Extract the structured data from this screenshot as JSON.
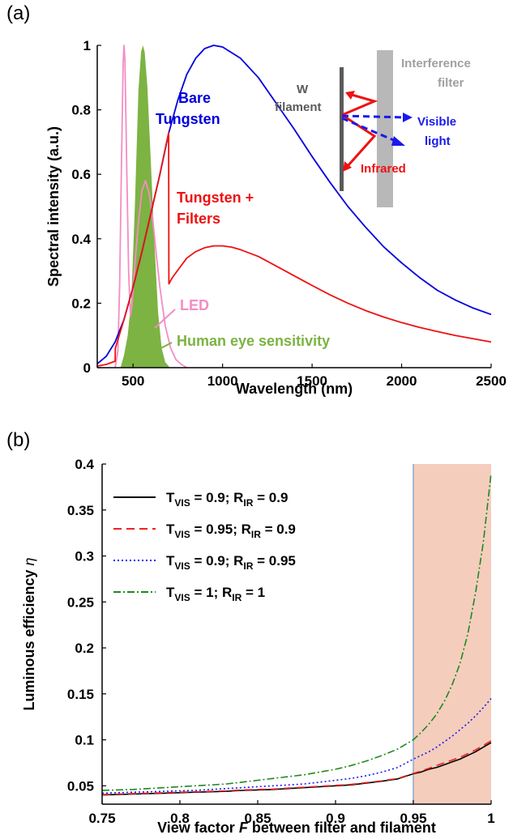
{
  "chart_data": [
    {
      "panel_label": "(a)",
      "type": "line",
      "xlabel": "Wavelength (nm)",
      "ylabel": "Spectral intensity (a.u.)",
      "xlim": [
        300,
        2500
      ],
      "ylim": [
        0,
        1
      ],
      "xticks": [
        500,
        1000,
        1500,
        2000,
        2500
      ],
      "yticks": [
        0,
        0.2,
        0.4,
        0.6,
        0.8,
        1
      ],
      "series": [
        {
          "name": "Bare Tungsten",
          "color": "#0000dd",
          "x": [
            300,
            350,
            400,
            450,
            500,
            550,
            600,
            650,
            700,
            750,
            800,
            850,
            900,
            950,
            1000,
            1100,
            1200,
            1300,
            1400,
            1500,
            1600,
            1700,
            1800,
            1900,
            2000,
            2100,
            2200,
            2300,
            2400,
            2500
          ],
          "y": [
            0.012,
            0.035,
            0.08,
            0.15,
            0.25,
            0.36,
            0.48,
            0.6,
            0.73,
            0.83,
            0.91,
            0.96,
            0.99,
            1.0,
            0.995,
            0.96,
            0.9,
            0.82,
            0.74,
            0.655,
            0.575,
            0.5,
            0.435,
            0.375,
            0.325,
            0.28,
            0.24,
            0.21,
            0.185,
            0.165
          ]
        },
        {
          "name": "Tungsten + Filters",
          "color": "#ee1111",
          "x": [
            300,
            350,
            400,
            401,
            450,
            500,
            550,
            600,
            650,
            699,
            700,
            720,
            760,
            800,
            850,
            900,
            950,
            1000,
            1050,
            1100,
            1200,
            1300,
            1400,
            1500,
            1600,
            1700,
            1800,
            1900,
            2000,
            2100,
            2200,
            2300,
            2400,
            2500
          ],
          "y": [
            0.005,
            0.01,
            0.02,
            0.06,
            0.15,
            0.25,
            0.36,
            0.48,
            0.6,
            0.73,
            0.26,
            0.28,
            0.31,
            0.34,
            0.36,
            0.372,
            0.378,
            0.378,
            0.374,
            0.366,
            0.345,
            0.315,
            0.285,
            0.255,
            0.226,
            0.2,
            0.177,
            0.157,
            0.14,
            0.125,
            0.112,
            0.1,
            0.09,
            0.08
          ]
        },
        {
          "name": "LED",
          "color": "#f58cc4",
          "x": [
            400,
            415,
            425,
            435,
            445,
            450,
            455,
            465,
            475,
            485,
            495,
            510,
            530,
            550,
            570,
            590,
            610,
            630,
            650,
            680,
            710,
            740,
            770,
            800
          ],
          "y": [
            0.0,
            0.05,
            0.25,
            0.62,
            0.95,
            1.0,
            0.95,
            0.62,
            0.3,
            0.16,
            0.2,
            0.32,
            0.45,
            0.55,
            0.58,
            0.54,
            0.46,
            0.35,
            0.25,
            0.13,
            0.06,
            0.025,
            0.01,
            0.0
          ]
        },
        {
          "name": "Human eye sensitivity",
          "color": "#7cb342",
          "x": [
            430,
            450,
            470,
            490,
            510,
            530,
            545,
            555,
            565,
            580,
            600,
            620,
            640,
            660,
            680,
            700
          ],
          "y": [
            0.0,
            0.04,
            0.1,
            0.21,
            0.5,
            0.86,
            0.98,
            1.0,
            0.98,
            0.87,
            0.63,
            0.38,
            0.17,
            0.06,
            0.017,
            0.004
          ]
        }
      ],
      "annotations": {
        "bare": [
          "Bare",
          "Tungsten"
        ],
        "filters": [
          "Tungsten +",
          "Filters"
        ],
        "led": "LED",
        "eye": "Human eye sensitivity"
      },
      "schematic": {
        "interference_filter": [
          "Interference",
          "filter"
        ],
        "filament": [
          "W",
          "filament"
        ],
        "visible": [
          "Visible",
          "light"
        ],
        "infrared": "Infrared"
      }
    },
    {
      "panel_label": "(b)",
      "type": "line",
      "xlim": [
        0.75,
        1.0
      ],
      "ylim": [
        0.03,
        0.4
      ],
      "xticks": [
        0.75,
        0.8,
        0.85,
        0.9,
        0.95,
        1
      ],
      "yticks": [
        0.05,
        0.1,
        0.15,
        0.2,
        0.25,
        0.3,
        0.35,
        0.4
      ],
      "shaded_region_x": [
        0.95,
        1.0
      ],
      "shade_color": "#f4cdbd",
      "x": [
        0.75,
        0.76,
        0.77,
        0.78,
        0.79,
        0.8,
        0.81,
        0.82,
        0.83,
        0.84,
        0.85,
        0.86,
        0.87,
        0.88,
        0.89,
        0.9,
        0.91,
        0.92,
        0.93,
        0.94,
        0.95,
        0.955,
        0.96,
        0.965,
        0.97,
        0.975,
        0.98,
        0.985,
        0.99,
        0.995,
        1.0
      ],
      "series": [
        {
          "color": "#000000",
          "dash": "",
          "legend": {
            "t": "0.9",
            "r": "0.9"
          },
          "y": [
            0.04,
            0.0405,
            0.041,
            0.0415,
            0.042,
            0.0425,
            0.043,
            0.0435,
            0.044,
            0.045,
            0.0455,
            0.046,
            0.047,
            0.048,
            0.049,
            0.05,
            0.051,
            0.053,
            0.055,
            0.0575,
            0.063,
            0.065,
            0.068,
            0.07,
            0.073,
            0.076,
            0.079,
            0.083,
            0.087,
            0.092,
            0.097
          ]
        },
        {
          "color": "#ee2222",
          "dash": "10 6",
          "legend": {
            "t": "0.95",
            "r": "0.9"
          },
          "y": [
            0.0405,
            0.041,
            0.0415,
            0.042,
            0.0425,
            0.043,
            0.0435,
            0.044,
            0.0445,
            0.0455,
            0.046,
            0.0465,
            0.0475,
            0.0485,
            0.0495,
            0.0505,
            0.0515,
            0.0535,
            0.0555,
            0.058,
            0.0635,
            0.066,
            0.069,
            0.072,
            0.075,
            0.078,
            0.081,
            0.085,
            0.089,
            0.094,
            0.099
          ]
        },
        {
          "color": "#1a1aee",
          "dash": "2 3",
          "legend": {
            "t": "0.9",
            "r": "0.95"
          },
          "y": [
            0.042,
            0.0425,
            0.043,
            0.0435,
            0.044,
            0.0445,
            0.045,
            0.046,
            0.047,
            0.048,
            0.049,
            0.05,
            0.051,
            0.052,
            0.054,
            0.056,
            0.058,
            0.061,
            0.065,
            0.07,
            0.079,
            0.083,
            0.087,
            0.092,
            0.098,
            0.104,
            0.111,
            0.118,
            0.126,
            0.135,
            0.145
          ]
        },
        {
          "color": "#1e8a1e",
          "dash": "9 3 2 3",
          "legend": {
            "t": "1",
            "r": "1"
          },
          "y": [
            0.045,
            0.0455,
            0.046,
            0.047,
            0.048,
            0.049,
            0.05,
            0.051,
            0.052,
            0.054,
            0.056,
            0.058,
            0.06,
            0.062,
            0.065,
            0.068,
            0.072,
            0.077,
            0.083,
            0.09,
            0.1,
            0.108,
            0.117,
            0.128,
            0.142,
            0.16,
            0.183,
            0.215,
            0.26,
            0.315,
            0.39
          ]
        }
      ],
      "legend_parts": {
        "t": "T",
        "t_sub": "VIS",
        "sep": "; ",
        "r": "R",
        "r_sub": "IR",
        "eq": " = "
      },
      "ylabel_parts": {
        "main": "Luminous efficiency ",
        "symbol": "η"
      },
      "xlabel_parts": {
        "pre": "View factor ",
        "symbol": "F",
        "post": " between filter and filament"
      }
    }
  ]
}
